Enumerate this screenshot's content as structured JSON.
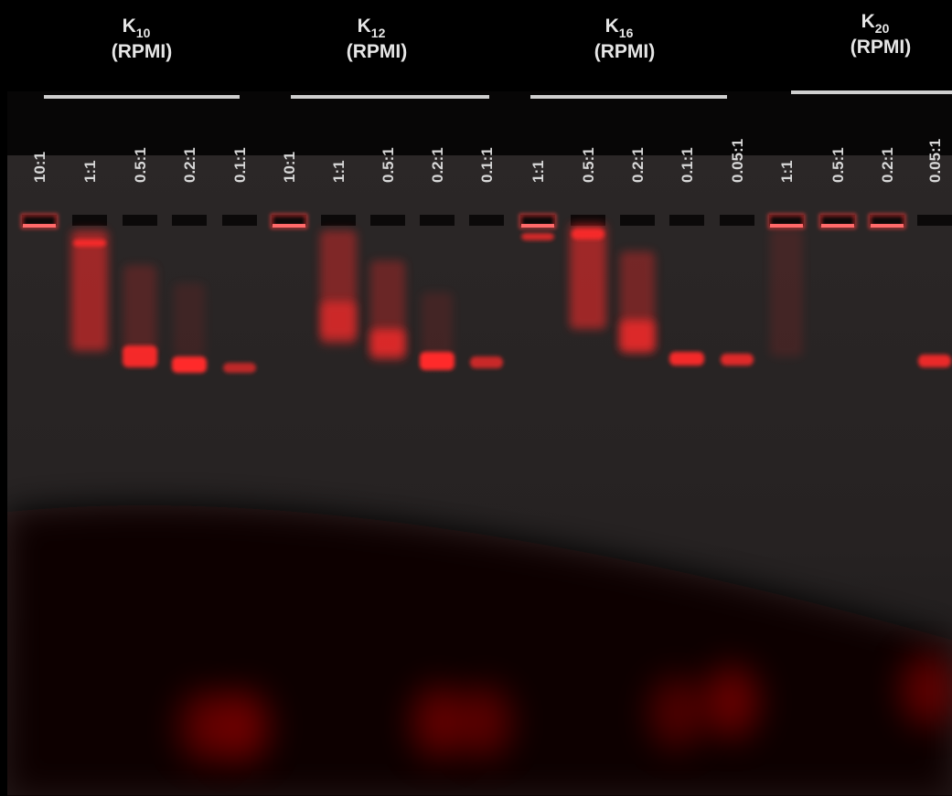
{
  "groups": [
    {
      "label": "K",
      "subscript": "10",
      "medium": "(RPMI)",
      "lanes": [
        "10:1",
        "1:1",
        "0.5:1",
        "0.2:1",
        "0.1:1"
      ]
    },
    {
      "label": "K",
      "subscript": "12",
      "medium": "(RPMI)",
      "lanes": [
        "10:1",
        "1:1",
        "0.5:1",
        "0.2:1",
        "0.1:1"
      ]
    },
    {
      "label": "K",
      "subscript": "16",
      "medium": "(RPMI)",
      "lanes": [
        "1:1",
        "0.5:1",
        "0.2:1",
        "0.1:1",
        "0.05:1"
      ]
    },
    {
      "label": "K",
      "subscript": "20",
      "medium": "(RPMI)",
      "lanes": [
        "1:1",
        "0.5:1",
        "0.2:1",
        "0.05:1"
      ]
    }
  ]
}
